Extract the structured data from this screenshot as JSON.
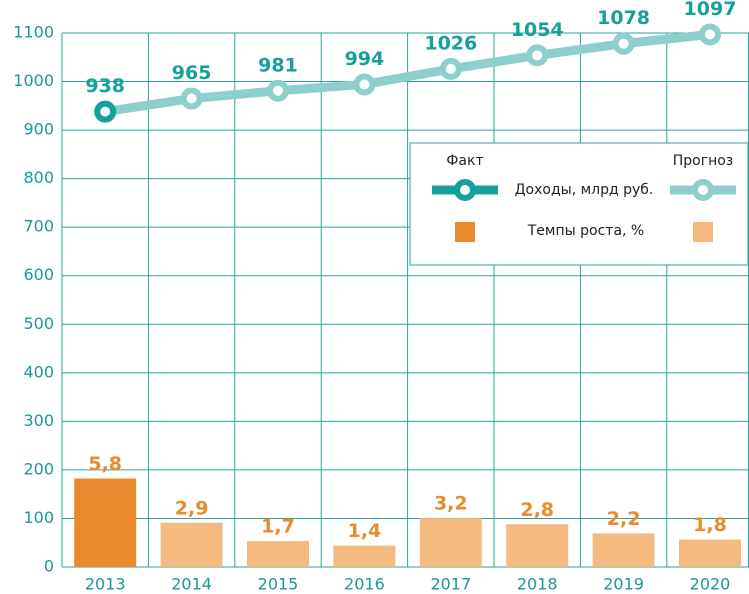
{
  "chart_data": {
    "type": "bar-line",
    "categories": [
      "2013",
      "2014",
      "2015",
      "2016",
      "2017",
      "2018",
      "2019",
      "2020"
    ],
    "ylim": [
      0,
      1100
    ],
    "yticks": [
      0,
      100,
      200,
      300,
      400,
      500,
      600,
      700,
      800,
      900,
      1000,
      1100
    ],
    "y2lim": [
      0,
      35
    ],
    "grid": true,
    "legend": {
      "fact": "Факт",
      "forecast": "Прогноз",
      "corner": "upper right"
    },
    "series": [
      {
        "name": "Доходы, млрд руб.",
        "kind": "line",
        "colors": [
          "#14a19c",
          "#8ccfcc",
          "#8ccfcc",
          "#8ccfcc",
          "#8ccfcc",
          "#8ccfcc",
          "#8ccfcc",
          "#8ccfcc"
        ],
        "values": [
          938,
          965,
          981,
          994,
          1026,
          1054,
          1078,
          1097
        ]
      },
      {
        "name": "Темпы роста, %",
        "kind": "bar",
        "axis": "y2",
        "colors": [
          "#e98b2c",
          "#f4ba80",
          "#f4ba80",
          "#f4ba80",
          "#f4ba80",
          "#f4ba80",
          "#f4ba80",
          "#f4ba80"
        ],
        "values": [
          5.8,
          2.9,
          1.7,
          1.4,
          3.2,
          2.8,
          2.2,
          1.8
        ],
        "value_labels": [
          "5,8",
          "2,9",
          "1,7",
          "1,4",
          "3,2",
          "2,8",
          "2,2",
          "1,8"
        ]
      }
    ]
  }
}
